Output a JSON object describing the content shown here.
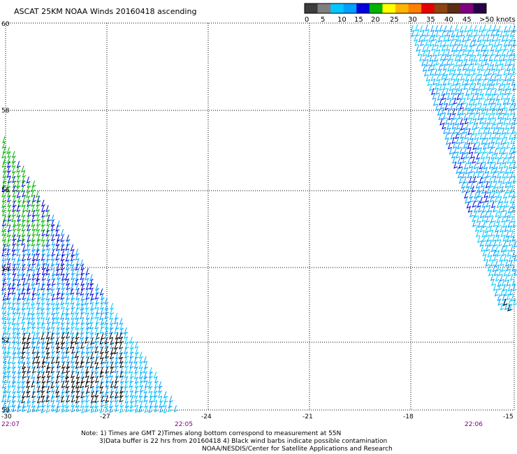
{
  "title": "ASCAT 25KM NOAA Winds 20160418 ascending",
  "legend": {
    "labels": [
      "0",
      "5",
      "10",
      "15",
      "20",
      "25",
      "30",
      "35",
      "40",
      "45",
      ">50 knots"
    ],
    "colors": [
      "#3c3c3c",
      "#7f7f7f",
      "#00c8ff",
      "#00a0ff",
      "#0000dc",
      "#00b400",
      "#ffff00",
      "#ffb400",
      "#ff7f00",
      "#e60000",
      "#8b4513",
      "#5a2d14",
      "#800080",
      "#280046"
    ]
  },
  "map": {
    "lat_labels": [
      "60",
      "58",
      "56",
      "54",
      "52",
      "50"
    ],
    "lon_labels": [
      "-30",
      "-27",
      "-24",
      "-21",
      "-18",
      "-15"
    ],
    "time_labels": [
      "22:07",
      "22:05",
      "22:06"
    ],
    "contamination_color": "#000000"
  },
  "notes": {
    "line1": "Note: 1) Times are GMT 2)Times along bottom correspond to measurement at 55N",
    "line2": "3)Data buffer is 22 hrs from 20160418 4) Black wind barbs indicate possible contamination",
    "line3": "NOAA/NESDIS/Center for Satellite Applications and Research"
  }
}
